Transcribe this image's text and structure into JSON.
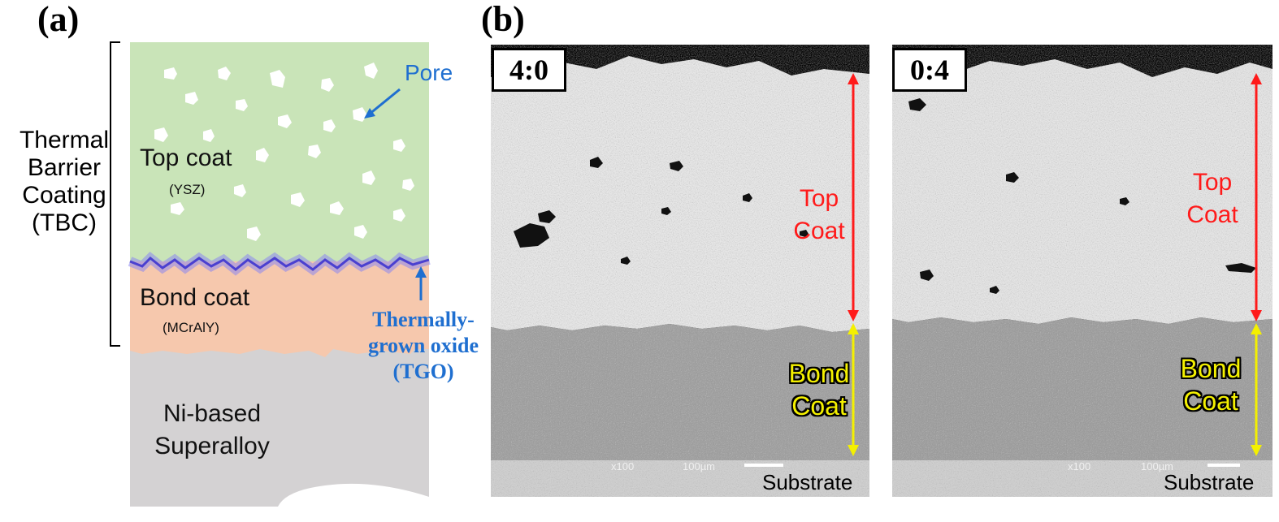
{
  "panel_a": {
    "label": "(a)",
    "tbc_label": "Thermal Barrier Coating (TBC)",
    "top_coat_title": "Top coat",
    "top_coat_sub": "(YSZ)",
    "bond_coat_title": "Bond coat",
    "bond_coat_sub": "(MCrAlY)",
    "substrate_title": "Ni-based Superalloy",
    "pore_label": "Pore",
    "tgo_label": "Thermally-grown oxide (TGO)"
  },
  "panel_b": {
    "label": "(b)",
    "images": [
      {
        "tag": "4:0",
        "top_label": "Top Coat",
        "bond_label": "Bond Coat",
        "substrate_label": "Substrate",
        "scale_mag": "x100",
        "scale_len": "100µm"
      },
      {
        "tag": "0:4",
        "top_label": "Top Coat",
        "bond_label": "Bond Coat",
        "substrate_label": "Substrate",
        "scale_mag": "x100",
        "scale_len": "100µm"
      }
    ]
  },
  "colors": {
    "top_coat": "#c9e4b8",
    "bond_coat": "#f6c8ad",
    "substrate": "#d4d2d3",
    "tgo": "#5a4fd6",
    "annotation_blue": "#1f6fd0",
    "top_arrow": "#ff1a1a",
    "bond_arrow": "#f4f000"
  }
}
